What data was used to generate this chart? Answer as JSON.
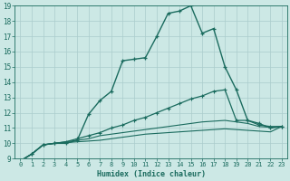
{
  "xlabel": "Humidex (Indice chaleur)",
  "bg_color": "#cce8e5",
  "grid_color": "#aacccc",
  "line_color": "#1a6b5e",
  "xlim": [
    -0.5,
    23.5
  ],
  "ylim": [
    9,
    19
  ],
  "xticks": [
    0,
    1,
    2,
    3,
    4,
    5,
    6,
    7,
    8,
    9,
    10,
    11,
    12,
    13,
    14,
    15,
    16,
    17,
    18,
    19,
    20,
    21,
    22,
    23
  ],
  "yticks": [
    9,
    10,
    11,
    12,
    13,
    14,
    15,
    16,
    17,
    18,
    19
  ],
  "line1_x": [
    0,
    1,
    2,
    3,
    4,
    5,
    6,
    7,
    8,
    9,
    10,
    11,
    12,
    13,
    14,
    15,
    16,
    17,
    18,
    19,
    20,
    21,
    22,
    23
  ],
  "line1_y": [
    8.85,
    9.3,
    9.9,
    10.0,
    10.0,
    10.2,
    11.9,
    12.8,
    13.4,
    15.4,
    15.5,
    15.6,
    17.0,
    18.5,
    18.65,
    19.0,
    17.2,
    17.5,
    15.0,
    13.5,
    11.5,
    11.3,
    11.0,
    11.1
  ],
  "line2_x": [
    0,
    1,
    2,
    3,
    4,
    5,
    6,
    7,
    8,
    9,
    10,
    11,
    12,
    13,
    14,
    15,
    16,
    17,
    18,
    19,
    20,
    21,
    22,
    23
  ],
  "line2_y": [
    8.85,
    9.3,
    9.9,
    10.0,
    10.1,
    10.3,
    10.5,
    10.7,
    11.0,
    11.2,
    11.5,
    11.7,
    12.0,
    12.3,
    12.6,
    12.9,
    13.1,
    13.4,
    13.5,
    11.5,
    11.5,
    11.2,
    11.1,
    11.1
  ],
  "line3_x": [
    0,
    1,
    2,
    3,
    4,
    5,
    6,
    7,
    8,
    9,
    10,
    11,
    12,
    13,
    14,
    15,
    16,
    17,
    18,
    19,
    20,
    21,
    22,
    23
  ],
  "line3_y": [
    8.85,
    9.3,
    9.9,
    10.0,
    10.1,
    10.2,
    10.3,
    10.5,
    10.6,
    10.7,
    10.8,
    10.9,
    11.0,
    11.1,
    11.2,
    11.3,
    11.4,
    11.45,
    11.5,
    11.4,
    11.3,
    11.1,
    11.05,
    11.1
  ],
  "line4_x": [
    0,
    1,
    2,
    3,
    4,
    5,
    6,
    7,
    8,
    9,
    10,
    11,
    12,
    13,
    14,
    15,
    16,
    17,
    18,
    19,
    20,
    21,
    22,
    23
  ],
  "line4_y": [
    8.85,
    9.3,
    9.9,
    10.0,
    10.05,
    10.1,
    10.15,
    10.2,
    10.3,
    10.4,
    10.5,
    10.6,
    10.65,
    10.7,
    10.75,
    10.8,
    10.85,
    10.9,
    10.95,
    10.9,
    10.85,
    10.8,
    10.75,
    11.1
  ]
}
